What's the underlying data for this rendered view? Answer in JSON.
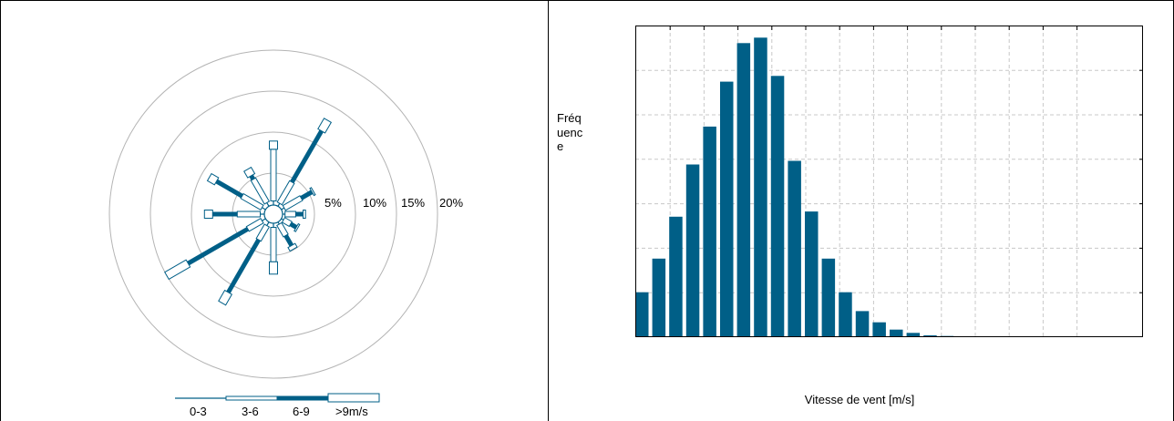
{
  "colors": {
    "fill": "#005f87",
    "hollow": "#ffffff",
    "ring": "#b4b4b4",
    "grid": "#c8c8c8",
    "border": "#000000"
  },
  "chart_data": [
    {
      "type": "wind_rose",
      "ring_labels": [
        "5%",
        "10%",
        "15%",
        "20%"
      ],
      "ring_values": [
        5,
        10,
        15,
        20
      ],
      "legend": [
        "0-3",
        "3-6",
        "6-9",
        ">9m/s"
      ],
      "bins": [
        "0-3",
        "3-6",
        "6-9",
        ">9m/s"
      ],
      "unit": "%",
      "sectors": [
        {
          "direction_deg": 0,
          "values": [
            0.5,
            6.3,
            0.0,
            1.0
          ]
        },
        {
          "direction_deg": 30,
          "values": [
            0.4,
            3.0,
            7.2,
            1.5
          ]
        },
        {
          "direction_deg": 60,
          "values": [
            0.4,
            2.4,
            1.5,
            0.2
          ]
        },
        {
          "direction_deg": 90,
          "values": [
            0.3,
            1.3,
            0.9,
            0.3
          ]
        },
        {
          "direction_deg": 120,
          "values": [
            0.3,
            1.0,
            0.8,
            0.2
          ]
        },
        {
          "direction_deg": 150,
          "values": [
            0.3,
            1.6,
            1.4,
            0.5
          ]
        },
        {
          "direction_deg": 180,
          "values": [
            0.5,
            4.2,
            0.0,
            1.5
          ]
        },
        {
          "direction_deg": 210,
          "values": [
            0.5,
            2.0,
            7.4,
            1.5
          ]
        },
        {
          "direction_deg": 240,
          "values": [
            0.5,
            2.0,
            8.4,
            3.0
          ]
        },
        {
          "direction_deg": 270,
          "values": [
            0.5,
            2.8,
            3.0,
            1.0
          ]
        },
        {
          "direction_deg": 300,
          "values": [
            0.5,
            2.8,
            3.6,
            1.0
          ]
        },
        {
          "direction_deg": 330,
          "values": [
            0.5,
            3.3,
            0.5,
            0.9
          ]
        }
      ]
    },
    {
      "type": "bar",
      "xlabel": "Vitesse de vent [m/s]",
      "ylabel": "Fréquence",
      "grid": true,
      "values": [
        0.148,
        0.259,
        0.397,
        0.569,
        0.694,
        0.842,
        0.969,
        0.987,
        0.861,
        0.581,
        0.414,
        0.259,
        0.148,
        0.086,
        0.049,
        0.025,
        0.014,
        0.006,
        0.004,
        0.003,
        0.003,
        0.003,
        0.003,
        0.003,
        0.003,
        0.003,
        0.003,
        0.003,
        0.003,
        0.003
      ],
      "ylim": [
        0,
        1
      ]
    }
  ]
}
